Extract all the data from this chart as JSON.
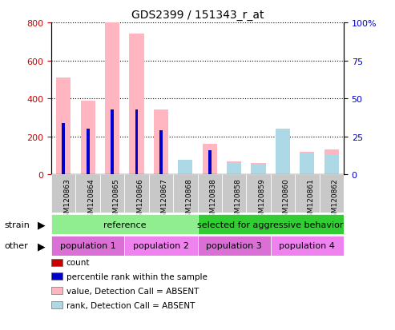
{
  "title": "GDS2399 / 151343_r_at",
  "samples": [
    "GSM120863",
    "GSM120864",
    "GSM120865",
    "GSM120866",
    "GSM120867",
    "GSM120868",
    "GSM120838",
    "GSM120858",
    "GSM120859",
    "GSM120860",
    "GSM120861",
    "GSM120862"
  ],
  "absent_value": [
    510,
    390,
    800,
    740,
    340,
    50,
    160,
    70,
    60,
    240,
    120,
    130
  ],
  "absent_rank_pct": [
    0,
    0,
    0,
    0,
    0,
    9.5,
    0,
    8.0,
    7.0,
    30,
    14,
    13
  ],
  "rank_pct": [
    34,
    30,
    43,
    43,
    29,
    0,
    16,
    0,
    0,
    0,
    0,
    0
  ],
  "count": [
    0,
    0,
    0,
    0,
    0,
    0,
    0,
    0,
    0,
    0,
    0,
    0
  ],
  "ylim_left": [
    0,
    800
  ],
  "ylim_right": [
    0,
    100
  ],
  "left_ticks": [
    0,
    200,
    400,
    600,
    800
  ],
  "right_ticks": [
    0,
    25,
    50,
    75,
    100
  ],
  "right_tick_labels": [
    "0",
    "25",
    "50",
    "75",
    "100%"
  ],
  "strain_groups": [
    {
      "label": "reference",
      "start": 0,
      "end": 6,
      "color": "#90EE90"
    },
    {
      "label": "selected for aggressive behavior",
      "start": 6,
      "end": 12,
      "color": "#32CD32"
    }
  ],
  "other_groups": [
    {
      "label": "population 1",
      "start": 0,
      "end": 3,
      "color": "#DA70D6"
    },
    {
      "label": "population 2",
      "start": 3,
      "end": 6,
      "color": "#EE82EE"
    },
    {
      "label": "population 3",
      "start": 6,
      "end": 9,
      "color": "#DA70D6"
    },
    {
      "label": "population 4",
      "start": 9,
      "end": 12,
      "color": "#EE82EE"
    }
  ],
  "color_count": "#cc0000",
  "color_rank": "#0000cc",
  "color_absent_value": "#FFB6C1",
  "color_absent_rank": "#ADD8E6",
  "legend_items": [
    {
      "label": "count",
      "color": "#cc0000"
    },
    {
      "label": "percentile rank within the sample",
      "color": "#0000cc"
    },
    {
      "label": "value, Detection Call = ABSENT",
      "color": "#FFB6C1"
    },
    {
      "label": "rank, Detection Call = ABSENT",
      "color": "#ADD8E6"
    }
  ],
  "strain_label": "strain",
  "other_label": "other"
}
